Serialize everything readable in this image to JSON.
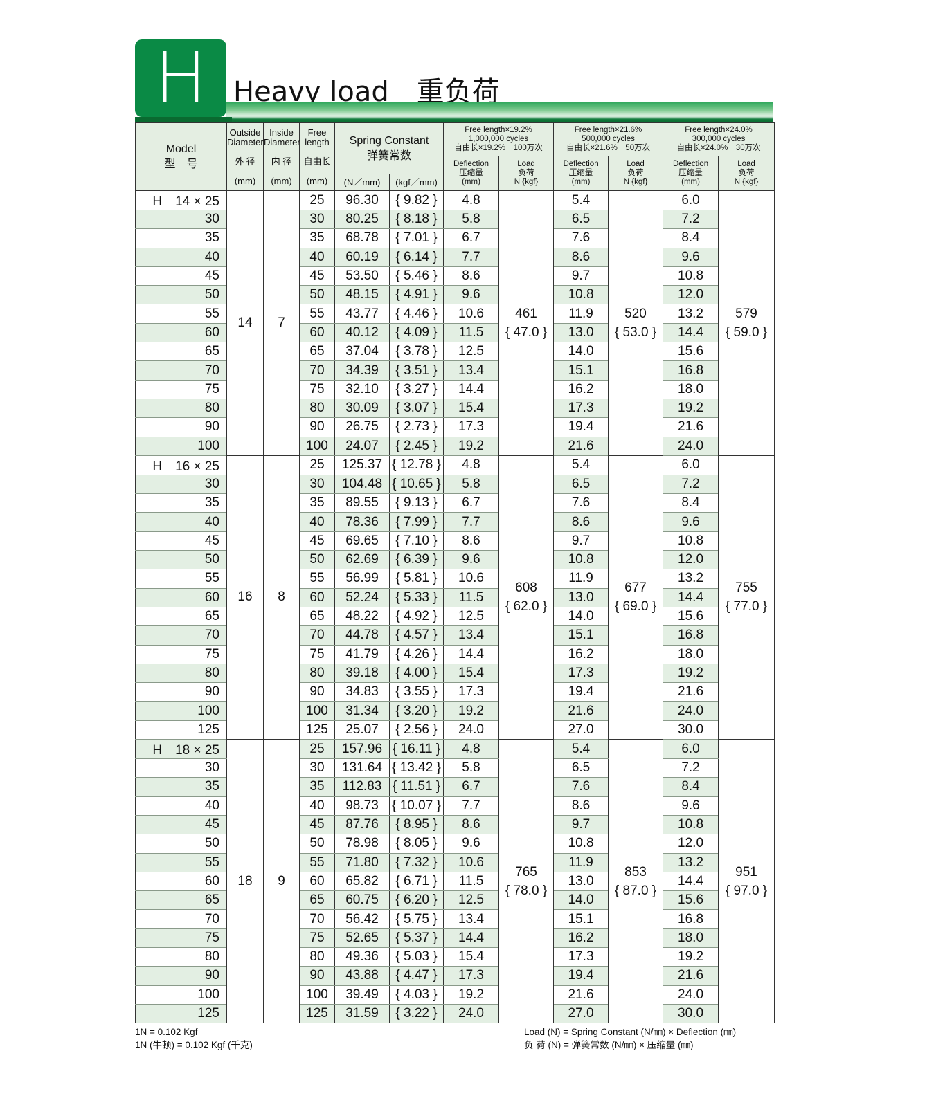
{
  "header": {
    "badge": "H",
    "title": "Heavy load　重负荷"
  },
  "columns": {
    "model": "Model",
    "model_cn": "型　号",
    "od": "Outside Diameter",
    "od_cn": "外 径",
    "id": "Inside Diameter",
    "id_cn": "内 径",
    "fl": "Free length",
    "fl_cn": "自由长",
    "mm": "(mm)",
    "sc": "Spring Constant",
    "sc_cn": "弹簧常数",
    "n_mm": "(N／mm)",
    "kgf_mm": "(kgf／mm)",
    "deflection": "Deflection",
    "deflection_cn": "压缩量",
    "load": "Load",
    "load_cn": "负荷",
    "load_unit": "N {kgf}",
    "groups": [
      {
        "l1": "Free length×19.2%",
        "l2": "1,000,000 cycles",
        "l3": "自由长×19.2%　100万次"
      },
      {
        "l1": "Free length×21.6%",
        "l2": "500,000 cycles",
        "l3": "自由长×21.6%　50万次"
      },
      {
        "l1": "Free length×24.0%",
        "l2": "300,000 cycles",
        "l3": "自由长×24.0%　30万次"
      }
    ]
  },
  "table": [
    {
      "model": "H　14 × 25",
      "od": "14",
      "id": "7",
      "loads": [
        [
          "461",
          "{ 47.0 }"
        ],
        [
          "520",
          "{ 53.0 }"
        ],
        [
          "579",
          "{ 59.0 }"
        ]
      ],
      "rows": [
        [
          "25",
          "96.30",
          "{ 9.82 }",
          "4.8",
          "5.4",
          "6.0"
        ],
        [
          "30",
          "80.25",
          "{ 8.18 }",
          "5.8",
          "6.5",
          "7.2"
        ],
        [
          "35",
          "68.78",
          "{ 7.01 }",
          "6.7",
          "7.6",
          "8.4"
        ],
        [
          "40",
          "60.19",
          "{ 6.14 }",
          "7.7",
          "8.6",
          "9.6"
        ],
        [
          "45",
          "53.50",
          "{ 5.46 }",
          "8.6",
          "9.7",
          "10.8"
        ],
        [
          "50",
          "48.15",
          "{ 4.91 }",
          "9.6",
          "10.8",
          "12.0"
        ],
        [
          "55",
          "43.77",
          "{ 4.46 }",
          "10.6",
          "11.9",
          "13.2"
        ],
        [
          "60",
          "40.12",
          "{ 4.09 }",
          "11.5",
          "13.0",
          "14.4"
        ],
        [
          "65",
          "37.04",
          "{ 3.78 }",
          "12.5",
          "14.0",
          "15.6"
        ],
        [
          "70",
          "34.39",
          "{ 3.51 }",
          "13.4",
          "15.1",
          "16.8"
        ],
        [
          "75",
          "32.10",
          "{ 3.27 }",
          "14.4",
          "16.2",
          "18.0"
        ],
        [
          "80",
          "30.09",
          "{ 3.07 }",
          "15.4",
          "17.3",
          "19.2"
        ],
        [
          "90",
          "26.75",
          "{ 2.73 }",
          "17.3",
          "19.4",
          "21.6"
        ],
        [
          "100",
          "24.07",
          "{ 2.45 }",
          "19.2",
          "21.6",
          "24.0"
        ]
      ]
    },
    {
      "model": "H　16 × 25",
      "od": "16",
      "id": "8",
      "loads": [
        [
          "608",
          "{ 62.0 }"
        ],
        [
          "677",
          "{ 69.0 }"
        ],
        [
          "755",
          "{ 77.0 }"
        ]
      ],
      "rows": [
        [
          "25",
          "125.37",
          "{ 12.78 }",
          "4.8",
          "5.4",
          "6.0"
        ],
        [
          "30",
          "104.48",
          "{ 10.65 }",
          "5.8",
          "6.5",
          "7.2"
        ],
        [
          "35",
          "89.55",
          "{ 9.13 }",
          "6.7",
          "7.6",
          "8.4"
        ],
        [
          "40",
          "78.36",
          "{ 7.99 }",
          "7.7",
          "8.6",
          "9.6"
        ],
        [
          "45",
          "69.65",
          "{ 7.10 }",
          "8.6",
          "9.7",
          "10.8"
        ],
        [
          "50",
          "62.69",
          "{ 6.39 }",
          "9.6",
          "10.8",
          "12.0"
        ],
        [
          "55",
          "56.99",
          "{ 5.81 }",
          "10.6",
          "11.9",
          "13.2"
        ],
        [
          "60",
          "52.24",
          "{ 5.33 }",
          "11.5",
          "13.0",
          "14.4"
        ],
        [
          "65",
          "48.22",
          "{ 4.92 }",
          "12.5",
          "14.0",
          "15.6"
        ],
        [
          "70",
          "44.78",
          "{ 4.57 }",
          "13.4",
          "15.1",
          "16.8"
        ],
        [
          "75",
          "41.79",
          "{ 4.26 }",
          "14.4",
          "16.2",
          "18.0"
        ],
        [
          "80",
          "39.18",
          "{ 4.00 }",
          "15.4",
          "17.3",
          "19.2"
        ],
        [
          "90",
          "34.83",
          "{ 3.55 }",
          "17.3",
          "19.4",
          "21.6"
        ],
        [
          "100",
          "31.34",
          "{ 3.20 }",
          "19.2",
          "21.6",
          "24.0"
        ],
        [
          "125",
          "25.07",
          "{ 2.56 }",
          "24.0",
          "27.0",
          "30.0"
        ]
      ]
    },
    {
      "model": "H　18 × 25",
      "od": "18",
      "id": "9",
      "loads": [
        [
          "765",
          "{ 78.0 }"
        ],
        [
          "853",
          "{ 87.0 }"
        ],
        [
          "951",
          "{ 97.0 }"
        ]
      ],
      "rows": [
        [
          "25",
          "157.96",
          "{ 16.11 }",
          "4.8",
          "5.4",
          "6.0"
        ],
        [
          "30",
          "131.64",
          "{ 13.42 }",
          "5.8",
          "6.5",
          "7.2"
        ],
        [
          "35",
          "112.83",
          "{ 11.51 }",
          "6.7",
          "7.6",
          "8.4"
        ],
        [
          "40",
          "98.73",
          "{ 10.07 }",
          "7.7",
          "8.6",
          "9.6"
        ],
        [
          "45",
          "87.76",
          "{ 8.95 }",
          "8.6",
          "9.7",
          "10.8"
        ],
        [
          "50",
          "78.98",
          "{ 8.05 }",
          "9.6",
          "10.8",
          "12.0"
        ],
        [
          "55",
          "71.80",
          "{ 7.32 }",
          "10.6",
          "11.9",
          "13.2"
        ],
        [
          "60",
          "65.82",
          "{ 6.71 }",
          "11.5",
          "13.0",
          "14.4"
        ],
        [
          "65",
          "60.75",
          "{ 6.20 }",
          "12.5",
          "14.0",
          "15.6"
        ],
        [
          "70",
          "56.42",
          "{ 5.75 }",
          "13.4",
          "15.1",
          "16.8"
        ],
        [
          "75",
          "52.65",
          "{ 5.37 }",
          "14.4",
          "16.2",
          "18.0"
        ],
        [
          "80",
          "49.36",
          "{ 5.03 }",
          "15.4",
          "17.3",
          "19.2"
        ],
        [
          "90",
          "43.88",
          "{ 4.47 }",
          "17.3",
          "19.4",
          "21.6"
        ],
        [
          "100",
          "39.49",
          "{ 4.03 }",
          "19.2",
          "21.6",
          "24.0"
        ],
        [
          "125",
          "31.59",
          "{ 3.22 }",
          "24.0",
          "27.0",
          "30.0"
        ]
      ]
    }
  ],
  "footer": {
    "left1": "1N = 0.102 Kgf",
    "left2": "1N (牛顿) = 0.102 Kgf (千克)",
    "right1": "Load (N) = Spring Constant (N/㎜) × Deflection (㎜)",
    "right2": "负 荷 (N) = 弹簧常数 (N/㎜) × 压缩量 (㎜)"
  }
}
